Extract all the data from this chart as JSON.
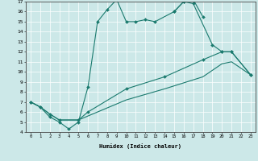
{
  "xlabel": "Humidex (Indice chaleur)",
  "xlim": [
    -0.5,
    23.5
  ],
  "ylim": [
    4,
    17
  ],
  "xticks": [
    0,
    1,
    2,
    3,
    4,
    5,
    6,
    7,
    8,
    9,
    10,
    11,
    12,
    13,
    14,
    15,
    16,
    17,
    18,
    19,
    20,
    21,
    22,
    23
  ],
  "yticks": [
    4,
    5,
    6,
    7,
    8,
    9,
    10,
    11,
    12,
    13,
    14,
    15,
    16,
    17
  ],
  "line_color": "#1a7a6e",
  "bg_color": "#cce8e8",
  "grid_color": "#ffffff",
  "curve1_x": [
    0,
    1,
    2,
    3,
    4,
    5,
    6,
    7,
    8,
    9,
    10,
    11,
    12,
    13,
    15,
    16,
    17,
    18
  ],
  "curve1_y": [
    7.0,
    6.5,
    5.5,
    5.0,
    4.3,
    5.0,
    8.5,
    15.0,
    16.2,
    17.2,
    15.0,
    15.0,
    15.2,
    15.0,
    16.0,
    17.0,
    17.2,
    15.5
  ],
  "curve2_x": [
    15,
    16,
    17,
    19,
    20,
    21,
    23
  ],
  "curve2_y": [
    16.0,
    17.0,
    16.8,
    12.7,
    12.0,
    12.0,
    9.7
  ],
  "curve3_x": [
    0,
    1,
    2,
    3,
    5,
    6,
    10,
    14,
    18,
    20,
    21,
    23
  ],
  "curve3_y": [
    7.0,
    6.5,
    5.8,
    5.2,
    5.2,
    6.0,
    8.3,
    9.5,
    11.2,
    12.0,
    12.0,
    9.7
  ],
  "curve4_x": [
    0,
    1,
    2,
    3,
    5,
    10,
    14,
    18,
    20,
    21,
    23
  ],
  "curve4_y": [
    7.0,
    6.5,
    5.8,
    5.2,
    5.2,
    7.2,
    8.3,
    9.5,
    10.8,
    11.0,
    9.7
  ]
}
